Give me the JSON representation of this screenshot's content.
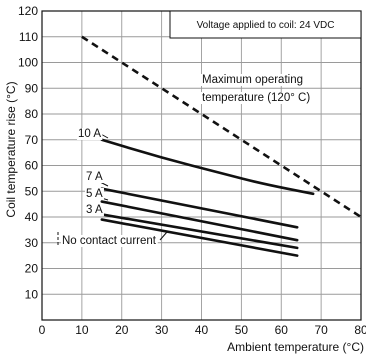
{
  "chart_data": {
    "type": "line",
    "xlabel": "Ambient temperature (°C)",
    "ylabel": "Coil temperature rise (°C)",
    "xlim": [
      0,
      80
    ],
    "ylim": [
      0,
      120
    ],
    "x_ticks": [
      0,
      10,
      20,
      30,
      40,
      50,
      60,
      70,
      80
    ],
    "y_ticks": [
      10,
      20,
      30,
      40,
      50,
      60,
      70,
      80,
      90,
      100,
      110,
      120
    ],
    "grid": true,
    "note": "Voltage applied to coil: 24 VDC",
    "series": [
      {
        "name": "10 A",
        "x": [
          15,
          30,
          45,
          55,
          68
        ],
        "y": [
          70,
          63,
          57,
          53,
          49
        ]
      },
      {
        "name": "7 A",
        "x": [
          15,
          64
        ],
        "y": [
          51,
          36
        ]
      },
      {
        "name": "5 A",
        "x": [
          15,
          64
        ],
        "y": [
          46,
          31
        ]
      },
      {
        "name": "3 A",
        "x": [
          15,
          64
        ],
        "y": [
          41,
          28
        ]
      },
      {
        "name": "No contact current",
        "x": [
          15,
          64
        ],
        "y": [
          39,
          25
        ]
      }
    ],
    "limit_line": {
      "label_lines": [
        "Maximum operating",
        "temperature (120° C)"
      ],
      "x": [
        10,
        80
      ],
      "y": [
        110,
        40
      ]
    }
  }
}
